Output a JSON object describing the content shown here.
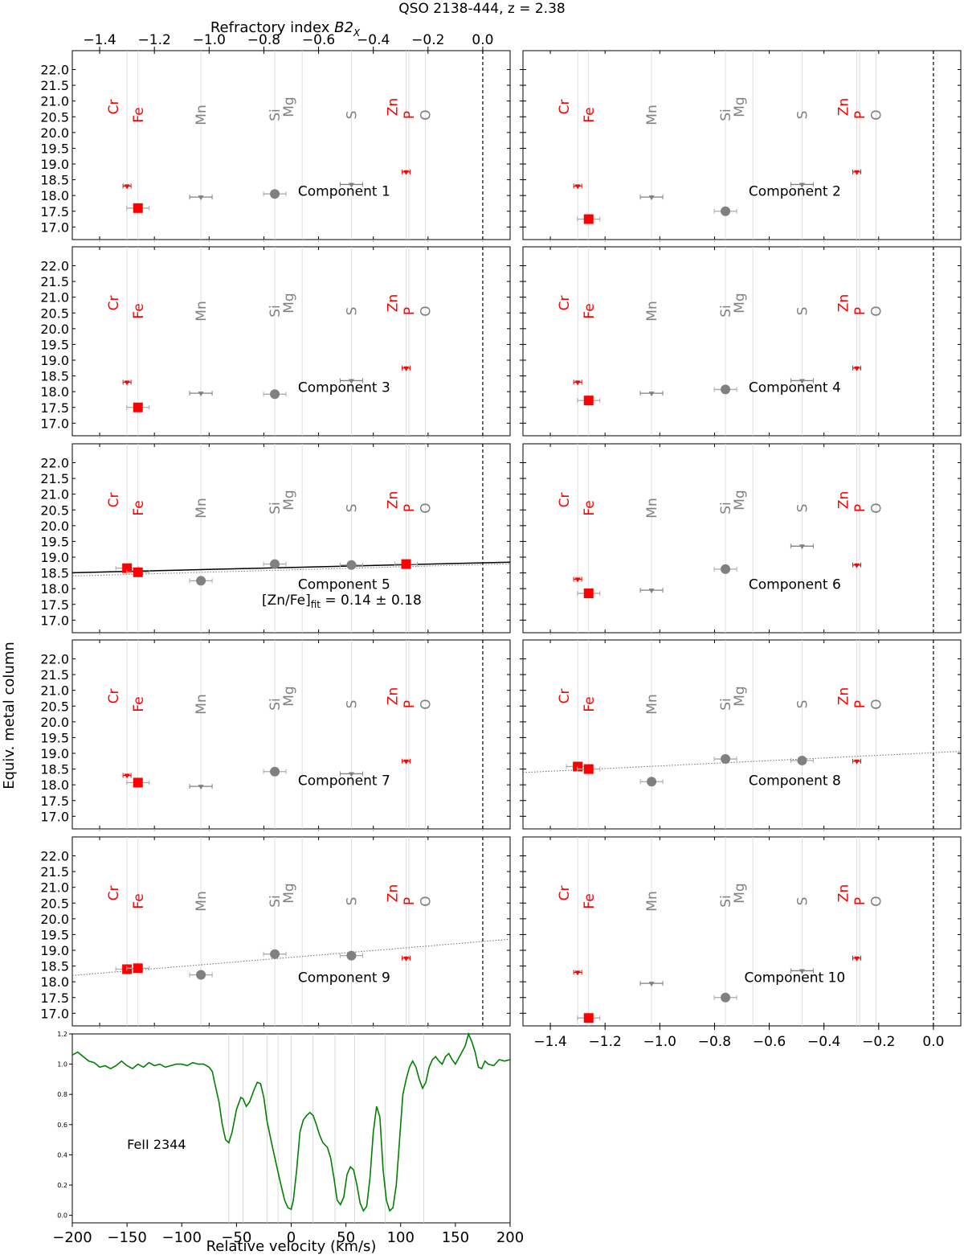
{
  "figure": {
    "title": "QSO 2138-444, z = 2.38",
    "top_axis_label_main": "Refractory index ",
    "top_axis_label_var": "B2",
    "top_axis_label_sub": "X",
    "ylabel": "Equiv. metal column",
    "colors": {
      "refractory": "#ff0000",
      "volatile": "#808080",
      "spectrum": "#008000",
      "fit": "#000000"
    }
  },
  "chart_data": {
    "type": "scatter",
    "x_axis": {
      "label": "Refractory index B2_X",
      "range": [
        -1.5,
        0.1
      ],
      "ticks": [
        -1.4,
        -1.2,
        -1.0,
        -0.8,
        -0.6,
        -0.4,
        -0.2,
        0.0
      ],
      "tick_labels": [
        "−1.4",
        "−1.2",
        "−1.0",
        "−0.8",
        "−0.6",
        "−0.4",
        "−0.2",
        "0.0"
      ]
    },
    "y_axis": {
      "label": "Equiv. metal column",
      "range": [
        16.6,
        22.6
      ],
      "ticks": [
        17.0,
        17.5,
        18.0,
        18.5,
        19.0,
        19.5,
        20.0,
        20.5,
        21.0,
        21.5,
        22.0
      ],
      "tick_labels": [
        "17.0",
        "17.5",
        "18.0",
        "18.5",
        "19.0",
        "19.5",
        "20.0",
        "20.5",
        "21.0",
        "21.5",
        "22.0"
      ]
    },
    "elements": [
      {
        "name": "Cr",
        "x": -1.3,
        "color": "red",
        "level": 1
      },
      {
        "name": "Fe",
        "x": -1.26,
        "color": "red",
        "level": 0
      },
      {
        "name": "Mn",
        "x": -1.03,
        "color": "gray",
        "level": 0
      },
      {
        "name": "Si",
        "x": -0.76,
        "color": "gray",
        "level": 0
      },
      {
        "name": "Mg",
        "x": -0.66,
        "color": "gray",
        "level": 1
      },
      {
        "name": "S",
        "x": -0.48,
        "color": "gray",
        "level": 0
      },
      {
        "name": "Zn",
        "x": -0.28,
        "color": "red",
        "level": 1
      },
      {
        "name": "P",
        "x": -0.27,
        "color": "red",
        "level": 0
      },
      {
        "name": "O",
        "x": -0.21,
        "color": "gray",
        "level": 0
      }
    ],
    "components": [
      {
        "label": "Component 1",
        "points": [
          {
            "el": "Cr",
            "x": -1.3,
            "y": 18.3,
            "kind": "upper",
            "color": "red"
          },
          {
            "el": "Fe",
            "x": -1.26,
            "y": 17.6,
            "kind": "detect",
            "color": "red"
          },
          {
            "el": "Mn",
            "x": -1.03,
            "y": 17.95,
            "kind": "upper",
            "color": "gray"
          },
          {
            "el": "Si",
            "x": -0.76,
            "y": 18.05,
            "kind": "detect",
            "color": "gray"
          },
          {
            "el": "S",
            "x": -0.48,
            "y": 18.35,
            "kind": "upper",
            "color": "gray"
          },
          {
            "el": "Zn",
            "x": -0.28,
            "y": 18.75,
            "kind": "upper",
            "color": "red"
          }
        ]
      },
      {
        "label": "Component 2",
        "points": [
          {
            "el": "Cr",
            "x": -1.3,
            "y": 18.3,
            "kind": "upper",
            "color": "red"
          },
          {
            "el": "Fe",
            "x": -1.26,
            "y": 17.25,
            "kind": "detect",
            "color": "red"
          },
          {
            "el": "Mn",
            "x": -1.03,
            "y": 17.95,
            "kind": "upper",
            "color": "gray"
          },
          {
            "el": "Si",
            "x": -0.76,
            "y": 17.5,
            "kind": "detect",
            "color": "gray"
          },
          {
            "el": "S",
            "x": -0.48,
            "y": 18.35,
            "kind": "upper",
            "color": "gray"
          },
          {
            "el": "Zn",
            "x": -0.28,
            "y": 18.75,
            "kind": "upper",
            "color": "red"
          }
        ]
      },
      {
        "label": "Component 3",
        "points": [
          {
            "el": "Cr",
            "x": -1.3,
            "y": 18.3,
            "kind": "upper",
            "color": "red"
          },
          {
            "el": "Fe",
            "x": -1.26,
            "y": 17.5,
            "kind": "detect",
            "color": "red"
          },
          {
            "el": "Mn",
            "x": -1.03,
            "y": 17.95,
            "kind": "upper",
            "color": "gray"
          },
          {
            "el": "Si",
            "x": -0.76,
            "y": 17.92,
            "kind": "detect",
            "color": "gray"
          },
          {
            "el": "S",
            "x": -0.48,
            "y": 18.35,
            "kind": "upper",
            "color": "gray"
          },
          {
            "el": "Zn",
            "x": -0.28,
            "y": 18.75,
            "kind": "upper",
            "color": "red"
          }
        ]
      },
      {
        "label": "Component 4",
        "points": [
          {
            "el": "Cr",
            "x": -1.3,
            "y": 18.3,
            "kind": "upper",
            "color": "red"
          },
          {
            "el": "Fe",
            "x": -1.26,
            "y": 17.72,
            "kind": "detect",
            "color": "red"
          },
          {
            "el": "Mn",
            "x": -1.03,
            "y": 17.95,
            "kind": "upper",
            "color": "gray"
          },
          {
            "el": "Si",
            "x": -0.76,
            "y": 18.07,
            "kind": "detect",
            "color": "gray"
          },
          {
            "el": "S",
            "x": -0.48,
            "y": 18.35,
            "kind": "upper",
            "color": "gray"
          },
          {
            "el": "Zn",
            "x": -0.28,
            "y": 18.75,
            "kind": "upper",
            "color": "red"
          }
        ]
      },
      {
        "label": "Component 5",
        "annotation": "[Zn/Fe]",
        "annotation_sub": "fit",
        "annotation_value": " = 0.14 ± 0.18",
        "fit": {
          "intercept": 18.82,
          "slope": 0.21,
          "style": "solid"
        },
        "points": [
          {
            "el": "Cr",
            "x": -1.3,
            "y": 18.65,
            "kind": "detect",
            "color": "red"
          },
          {
            "el": "Fe",
            "x": -1.26,
            "y": 18.52,
            "kind": "detect",
            "color": "red"
          },
          {
            "el": "Mn",
            "x": -1.03,
            "y": 18.25,
            "kind": "detect",
            "color": "gray"
          },
          {
            "el": "Si",
            "x": -0.76,
            "y": 18.78,
            "kind": "detect",
            "color": "gray"
          },
          {
            "el": "S",
            "x": -0.48,
            "y": 18.75,
            "kind": "detect",
            "color": "gray"
          },
          {
            "el": "Zn",
            "x": -0.28,
            "y": 18.78,
            "kind": "detect",
            "color": "red"
          }
        ]
      },
      {
        "label": "Component 6",
        "points": [
          {
            "el": "Cr",
            "x": -1.3,
            "y": 18.3,
            "kind": "upper",
            "color": "red"
          },
          {
            "el": "Fe",
            "x": -1.26,
            "y": 17.85,
            "kind": "detect",
            "color": "red"
          },
          {
            "el": "Mn",
            "x": -1.03,
            "y": 17.95,
            "kind": "upper",
            "color": "gray"
          },
          {
            "el": "Si",
            "x": -0.76,
            "y": 18.62,
            "kind": "detect",
            "color": "gray"
          },
          {
            "el": "S",
            "x": -0.48,
            "y": 19.35,
            "kind": "upper",
            "color": "gray"
          },
          {
            "el": "Zn",
            "x": -0.28,
            "y": 18.75,
            "kind": "upper",
            "color": "red"
          }
        ]
      },
      {
        "label": "Component 7",
        "points": [
          {
            "el": "Cr",
            "x": -1.3,
            "y": 18.3,
            "kind": "upper",
            "color": "red"
          },
          {
            "el": "Fe",
            "x": -1.26,
            "y": 18.07,
            "kind": "detect",
            "color": "red"
          },
          {
            "el": "Mn",
            "x": -1.03,
            "y": 17.95,
            "kind": "upper",
            "color": "gray"
          },
          {
            "el": "Si",
            "x": -0.76,
            "y": 18.42,
            "kind": "detect",
            "color": "gray"
          },
          {
            "el": "S",
            "x": -0.48,
            "y": 18.35,
            "kind": "upper",
            "color": "gray"
          },
          {
            "el": "Zn",
            "x": -0.28,
            "y": 18.75,
            "kind": "upper",
            "color": "red"
          }
        ]
      },
      {
        "label": "Component 8",
        "fit": {
          "intercept": 19.02,
          "slope": 0.42,
          "style": "dotted"
        },
        "points": [
          {
            "el": "Cr",
            "x": -1.3,
            "y": 18.58,
            "kind": "detect",
            "color": "red"
          },
          {
            "el": "Fe",
            "x": -1.26,
            "y": 18.5,
            "kind": "detect",
            "color": "red"
          },
          {
            "el": "Mn",
            "x": -1.03,
            "y": 18.1,
            "kind": "detect",
            "color": "gray"
          },
          {
            "el": "Si",
            "x": -0.76,
            "y": 18.82,
            "kind": "detect",
            "color": "gray"
          },
          {
            "el": "S",
            "x": -0.48,
            "y": 18.77,
            "kind": "detect",
            "color": "gray"
          },
          {
            "el": "Zn",
            "x": -0.28,
            "y": 18.75,
            "kind": "upper",
            "color": "red"
          }
        ]
      },
      {
        "label": "Component 9",
        "fit": {
          "intercept": 19.28,
          "slope": 0.72,
          "style": "dotted"
        },
        "points": [
          {
            "el": "Cr",
            "x": -1.3,
            "y": 18.4,
            "kind": "detect",
            "color": "red"
          },
          {
            "el": "Fe",
            "x": -1.26,
            "y": 18.43,
            "kind": "detect",
            "color": "red"
          },
          {
            "el": "Mn",
            "x": -1.03,
            "y": 18.22,
            "kind": "detect",
            "color": "gray"
          },
          {
            "el": "Si",
            "x": -0.76,
            "y": 18.88,
            "kind": "detect",
            "color": "gray"
          },
          {
            "el": "S",
            "x": -0.48,
            "y": 18.83,
            "kind": "detect",
            "color": "gray"
          },
          {
            "el": "Zn",
            "x": -0.28,
            "y": 18.75,
            "kind": "upper",
            "color": "red"
          }
        ]
      },
      {
        "label": "Component 10",
        "points": [
          {
            "el": "Cr",
            "x": -1.3,
            "y": 18.3,
            "kind": "upper",
            "color": "red"
          },
          {
            "el": "Fe",
            "x": -1.26,
            "y": 16.85,
            "kind": "detect",
            "color": "red"
          },
          {
            "el": "Mn",
            "x": -1.03,
            "y": 17.95,
            "kind": "upper",
            "color": "gray"
          },
          {
            "el": "Si",
            "x": -0.76,
            "y": 17.5,
            "kind": "detect",
            "color": "gray"
          },
          {
            "el": "S",
            "x": -0.48,
            "y": 18.35,
            "kind": "upper",
            "color": "gray"
          },
          {
            "el": "Zn",
            "x": -0.28,
            "y": 18.75,
            "kind": "upper",
            "color": "red"
          }
        ]
      }
    ],
    "spectrum": {
      "type": "line",
      "label": "FeII 2344",
      "xlabel": "Relative velocity (km/s)",
      "x_range": [
        -200,
        200
      ],
      "y_range": [
        -0.05,
        1.2
      ],
      "x_ticks": [
        -200,
        -150,
        -100,
        -50,
        0,
        50,
        100,
        150,
        200
      ],
      "x_tick_labels": [
        "−200",
        "−150",
        "−100",
        "−50",
        "0",
        "50",
        "100",
        "150",
        "200"
      ],
      "y_ticks": [
        0.0,
        0.2,
        0.4,
        0.6,
        0.8,
        1.0,
        1.2
      ],
      "y_tick_labels": [
        "0.0",
        "0.2",
        "0.4",
        "0.6",
        "0.8",
        "1.0",
        "1.2"
      ],
      "component_velocities": [
        -57,
        -44,
        -22,
        -12,
        0,
        20,
        40,
        58,
        86,
        121
      ],
      "x": [
        -200,
        -195,
        -190,
        -185,
        -180,
        -175,
        -170,
        -165,
        -160,
        -155,
        -150,
        -145,
        -140,
        -135,
        -130,
        -125,
        -120,
        -115,
        -110,
        -105,
        -100,
        -95,
        -90,
        -85,
        -80,
        -75,
        -72,
        -70,
        -66,
        -63,
        -60,
        -57,
        -54,
        -50,
        -46,
        -44,
        -41,
        -38,
        -34,
        -31,
        -28,
        -25,
        -22,
        -18,
        -14,
        -10,
        -6,
        -3,
        0,
        2,
        5,
        8,
        11,
        14,
        17,
        20,
        23,
        26,
        29,
        33,
        36,
        39,
        42,
        45,
        48,
        51,
        54,
        57,
        60,
        63,
        66,
        69,
        72,
        75,
        78,
        81,
        84,
        87,
        90,
        93,
        96,
        99,
        102,
        105,
        108,
        111,
        114,
        117,
        120,
        123,
        126,
        129,
        132,
        135,
        138,
        141,
        144,
        147,
        150,
        153,
        156,
        159,
        162,
        165,
        168,
        171,
        174,
        177,
        180,
        185,
        190,
        195,
        200
      ],
      "y": [
        1.06,
        1.08,
        1.05,
        1.02,
        1.01,
        0.98,
        0.99,
        0.97,
        0.99,
        1.02,
        0.99,
        0.97,
        1.0,
        0.98,
        1.01,
        0.99,
        1.0,
        0.98,
        0.99,
        1.0,
        1.0,
        0.99,
        1.01,
        1.0,
        1.0,
        0.98,
        0.95,
        0.88,
        0.75,
        0.6,
        0.5,
        0.48,
        0.55,
        0.7,
        0.78,
        0.77,
        0.72,
        0.75,
        0.83,
        0.88,
        0.87,
        0.78,
        0.62,
        0.48,
        0.35,
        0.22,
        0.1,
        0.05,
        0.04,
        0.1,
        0.3,
        0.55,
        0.63,
        0.66,
        0.68,
        0.66,
        0.6,
        0.53,
        0.48,
        0.45,
        0.38,
        0.25,
        0.1,
        0.07,
        0.12,
        0.27,
        0.32,
        0.3,
        0.2,
        0.08,
        0.03,
        0.06,
        0.25,
        0.55,
        0.72,
        0.65,
        0.3,
        0.1,
        0.03,
        0.05,
        0.2,
        0.5,
        0.8,
        0.9,
        0.98,
        1.02,
        0.98,
        0.9,
        0.84,
        0.88,
        0.98,
        1.03,
        1.05,
        1.02,
        1.0,
        1.05,
        1.07,
        1.03,
        1.0,
        1.04,
        1.08,
        1.12,
        1.2,
        1.15,
        1.08,
        0.98,
        0.97,
        1.02,
        1.0,
        0.99,
        1.03,
        1.02,
        1.03
      ]
    }
  }
}
